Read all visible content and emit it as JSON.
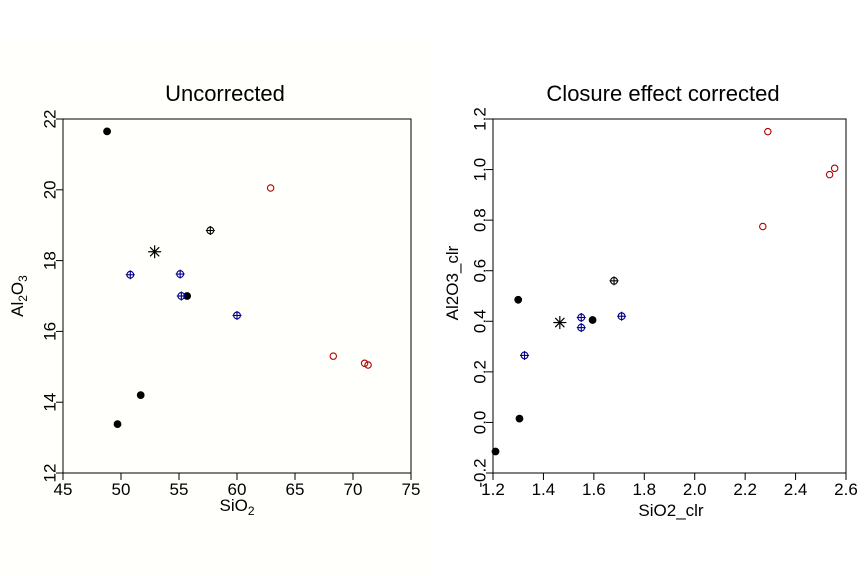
{
  "chart_data": [
    {
      "type": "scatter",
      "title": "Uncorrected",
      "xlabel": "SiO",
      "xlabel_sub": "2",
      "ylabel_parts": [
        "Al",
        "2",
        "O",
        "3"
      ],
      "xlim": [
        45,
        75
      ],
      "ylim": [
        12,
        22
      ],
      "xticks": [
        "45",
        "50",
        "55",
        "60",
        "65",
        "70",
        "75"
      ],
      "yticks": [
        "12",
        "14",
        "16",
        "18",
        "20",
        "22"
      ],
      "grid": false,
      "series": [
        {
          "marker": "filled-circle",
          "color": "#000000",
          "points": [
            [
              48.8,
              21.65
            ],
            [
              49.7,
              13.38
            ],
            [
              51.7,
              14.2
            ],
            [
              55.7,
              17.0
            ]
          ]
        },
        {
          "marker": "crossed-circle",
          "color": "#00008b",
          "points": [
            [
              50.8,
              17.6
            ],
            [
              55.1,
              17.62
            ],
            [
              55.2,
              17.0
            ],
            [
              60.0,
              16.45
            ]
          ]
        },
        {
          "marker": "crossed-circle",
          "color": "#000000",
          "points": [
            [
              57.7,
              18.85
            ]
          ]
        },
        {
          "marker": "open-circle",
          "color": "#b00000",
          "points": [
            [
              62.9,
              20.05
            ],
            [
              68.3,
              15.3
            ],
            [
              71.0,
              15.1
            ],
            [
              71.3,
              15.05
            ]
          ]
        },
        {
          "marker": "asterisk",
          "color": "#000000",
          "points": [
            [
              52.9,
              18.25
            ]
          ]
        }
      ]
    },
    {
      "type": "scatter",
      "title": "Closure effect corrected",
      "xlabel": "SiO2_clr",
      "ylabel": "Al2O3_clr",
      "xlim": [
        1.2,
        2.6
      ],
      "ylim": [
        -0.2,
        1.2
      ],
      "xticks": [
        "1.2",
        "1.4",
        "1.6",
        "1.8",
        "2.0",
        "2.2",
        "2.4",
        "2.6"
      ],
      "yticks": [
        "-0.2",
        "0.0",
        "0.2",
        "0.4",
        "0.6",
        "0.8",
        "1.0",
        "1.2"
      ],
      "grid": false,
      "series": [
        {
          "marker": "filled-circle",
          "color": "#000000",
          "points": [
            [
              1.21,
              -0.115
            ],
            [
              1.3,
              0.485
            ],
            [
              1.305,
              0.015
            ],
            [
              1.595,
              0.405
            ]
          ]
        },
        {
          "marker": "crossed-circle",
          "color": "#00008b",
          "points": [
            [
              1.325,
              0.265
            ],
            [
              1.55,
              0.415
            ],
            [
              1.55,
              0.375
            ],
            [
              1.71,
              0.42
            ]
          ]
        },
        {
          "marker": "crossed-circle",
          "color": "#000000",
          "points": [
            [
              1.68,
              0.56
            ]
          ]
        },
        {
          "marker": "open-circle",
          "color": "#b00000",
          "points": [
            [
              2.27,
              0.775
            ],
            [
              2.29,
              1.15
            ],
            [
              2.535,
              0.98
            ],
            [
              2.555,
              1.005
            ]
          ]
        },
        {
          "marker": "asterisk",
          "color": "#000000",
          "points": [
            [
              1.465,
              0.395
            ]
          ]
        }
      ]
    }
  ]
}
